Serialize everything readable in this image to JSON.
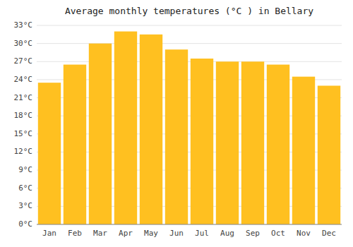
{
  "chart_data": {
    "type": "bar",
    "title": "Average monthly temperatures (°C ) in Bellary",
    "categories": [
      "Jan",
      "Feb",
      "Mar",
      "Apr",
      "May",
      "Jun",
      "Jul",
      "Aug",
      "Sep",
      "Oct",
      "Nov",
      "Dec"
    ],
    "values": [
      23.5,
      26.5,
      30.0,
      32.0,
      31.5,
      29.0,
      27.5,
      27.0,
      27.0,
      26.5,
      24.5,
      23.0
    ],
    "color": "#FFC020",
    "ylim": [
      0,
      33
    ],
    "yticks": [
      {
        "value": 0,
        "label": "0°C"
      },
      {
        "value": 3,
        "label": "3°C"
      },
      {
        "value": 6,
        "label": "6°C"
      },
      {
        "value": 9,
        "label": "9°C"
      },
      {
        "value": 12,
        "label": "12°C"
      },
      {
        "value": 15,
        "label": "15°C"
      },
      {
        "value": 18,
        "label": "18°C"
      },
      {
        "value": 21,
        "label": "21°C"
      },
      {
        "value": 24,
        "label": "24°C"
      },
      {
        "value": 27,
        "label": "27°C"
      },
      {
        "value": 30,
        "label": "30°C"
      },
      {
        "value": 33,
        "label": "33°C"
      }
    ],
    "grid": true
  }
}
